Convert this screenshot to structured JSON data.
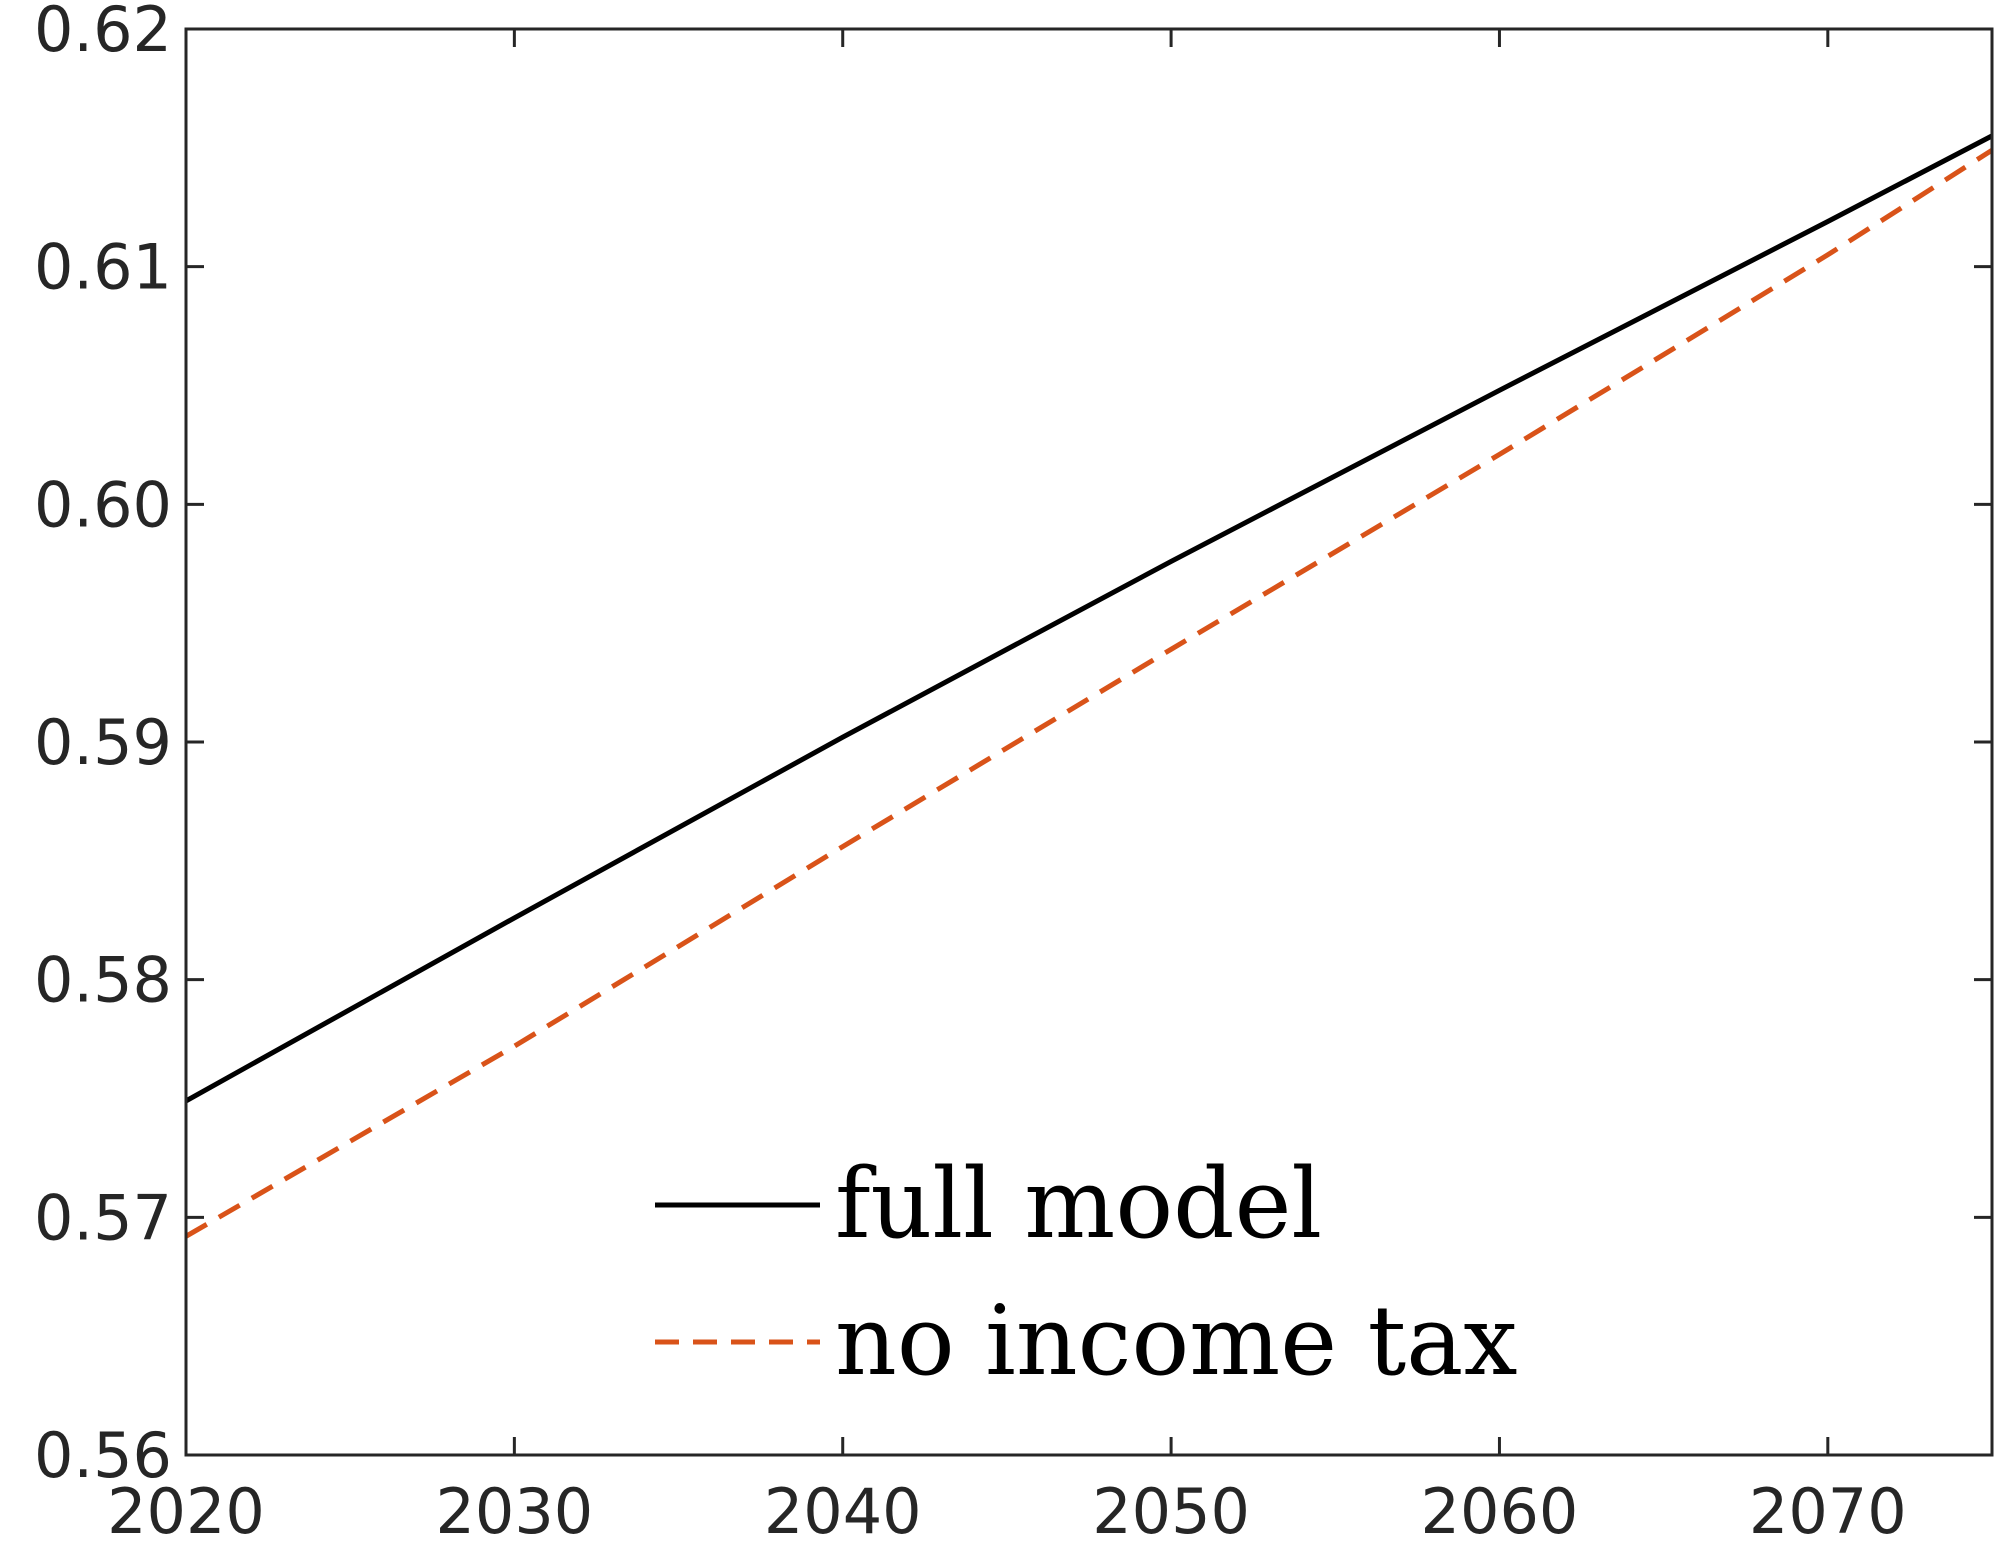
{
  "chart_data": {
    "type": "line",
    "title": "",
    "xlabel": "",
    "ylabel": "",
    "xlim": [
      2020,
      2075
    ],
    "ylim": [
      0.56,
      0.62
    ],
    "xticks": [
      2020,
      2030,
      2040,
      2050,
      2060,
      2070
    ],
    "xtick_labels": [
      "2020",
      "2030",
      "2040",
      "2050",
      "2060",
      "2070"
    ],
    "yticks": [
      0.56,
      0.57,
      0.58,
      0.59,
      0.6,
      0.61,
      0.62
    ],
    "ytick_labels": [
      "0.56",
      "0.57",
      "0.58",
      "0.59",
      "0.60",
      "0.61",
      "0.62"
    ],
    "grid": false,
    "legend_position": "bottom-center",
    "series": [
      {
        "name": "full model",
        "color": "#000000",
        "style": "solid",
        "x": [
          2020,
          2030,
          2040,
          2050,
          2060,
          2070,
          2075
        ],
        "y": [
          0.5749,
          0.5826,
          0.5902,
          0.5976,
          0.6048,
          0.6119,
          0.6155
        ]
      },
      {
        "name": "no income tax",
        "color": "#D95319",
        "style": "dashed",
        "x": [
          2020,
          2030,
          2040,
          2050,
          2060,
          2070,
          2075
        ],
        "y": [
          0.5692,
          0.5772,
          0.5856,
          0.5939,
          0.6021,
          0.6105,
          0.6149
        ]
      }
    ]
  }
}
